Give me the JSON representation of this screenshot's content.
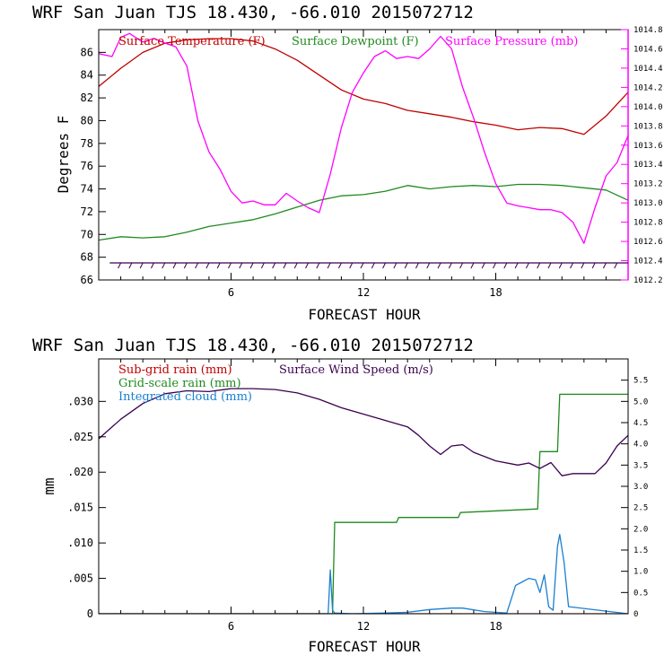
{
  "colors": {
    "temperature": "#c00000",
    "dewpoint": "#1f8a1f",
    "pressure": "#ff00ff",
    "wind": "#3a0050",
    "subgrid": "#c00000",
    "gridscale": "#1f8a1f",
    "cloud": "#1a7fd0",
    "axis": "#000000"
  },
  "chart_data": [
    {
      "type": "line",
      "title": "WRF  San Juan TJS  18.430, -66.010  2015072712",
      "xlabel": "FORECAST HOUR",
      "ylabel": "Degrees F",
      "xlim": [
        0,
        24
      ],
      "ylim": [
        66,
        88
      ],
      "x_ticks": [
        6,
        12,
        18
      ],
      "y_ticks": [
        66,
        68,
        70,
        72,
        74,
        76,
        78,
        80,
        82,
        84,
        86
      ],
      "y2lim": [
        1012.2,
        1014.8
      ],
      "y2_ticks": [
        "1012.2",
        "1012.4",
        "1012.6",
        "1012.8",
        "1013.0",
        "1013.2",
        "1013.4",
        "1013.6",
        "1013.8",
        "1014.0",
        "1014.2",
        "1014.4",
        "1014.6",
        "1014.8"
      ],
      "series": [
        {
          "name": "Surface Temperature (F)",
          "axis": "left",
          "x": [
            0,
            1,
            2,
            3,
            4,
            5,
            6,
            7,
            8,
            9,
            10,
            11,
            12,
            13,
            14,
            15,
            16,
            17,
            18,
            19,
            20,
            21,
            22,
            23,
            24
          ],
          "y": [
            83.0,
            84.6,
            86.0,
            86.8,
            87.1,
            87.2,
            87.2,
            87.0,
            86.3,
            85.3,
            84.0,
            82.7,
            81.9,
            81.5,
            80.9,
            80.6,
            80.3,
            79.9,
            79.6,
            79.2,
            79.4,
            79.3,
            78.8,
            80.4,
            82.5
          ]
        },
        {
          "name": "Surface Dewpoint (F)",
          "axis": "left",
          "x": [
            0,
            1,
            2,
            3,
            4,
            5,
            6,
            7,
            8,
            9,
            10,
            11,
            12,
            13,
            14,
            15,
            16,
            17,
            18,
            19,
            20,
            21,
            22,
            23,
            24
          ],
          "y": [
            69.5,
            69.8,
            69.7,
            69.8,
            70.2,
            70.7,
            71.0,
            71.3,
            71.8,
            72.4,
            73.0,
            73.4,
            73.5,
            73.8,
            74.3,
            74.0,
            74.2,
            74.3,
            74.2,
            74.4,
            74.4,
            74.3,
            74.1,
            73.9,
            73.0
          ]
        },
        {
          "name": "Surface Pressure (mb)",
          "axis": "right",
          "x": [
            0,
            0.6,
            1,
            1.4,
            2,
            2.5,
            3,
            3.5,
            4,
            4.5,
            5,
            5.5,
            6,
            6.5,
            7,
            7.5,
            8,
            8.5,
            9,
            9.5,
            10,
            10.5,
            11,
            11.5,
            12,
            12.5,
            13,
            13.5,
            14,
            14.5,
            15,
            15.5,
            16,
            16.5,
            17,
            17.5,
            18,
            18.5,
            19,
            19.5,
            20,
            20.5,
            21,
            21.5,
            22,
            22.5,
            23,
            23.5,
            24
          ],
          "y": [
            1014.55,
            1014.52,
            1014.72,
            1014.76,
            1014.67,
            1014.71,
            1014.66,
            1014.62,
            1014.42,
            1013.85,
            1013.53,
            1013.35,
            1013.12,
            1013.0,
            1013.02,
            1012.98,
            1012.98,
            1013.1,
            1013.02,
            1012.95,
            1012.9,
            1013.3,
            1013.78,
            1014.15,
            1014.35,
            1014.52,
            1014.58,
            1014.5,
            1014.52,
            1014.5,
            1014.6,
            1014.73,
            1014.6,
            1014.2,
            1013.88,
            1013.52,
            1013.2,
            1013.0,
            1012.97,
            1012.95,
            1012.93,
            1012.93,
            1012.9,
            1012.8,
            1012.58,
            1012.95,
            1013.28,
            1013.42,
            1013.7
          ]
        }
      ],
      "wind_barbs_y": 67.5
    },
    {
      "type": "line",
      "title": "WRF  San Juan TJS  18.430, -66.010  2015072712",
      "xlabel": "FORECAST HOUR",
      "ylabel": "mm",
      "xlim": [
        0,
        24
      ],
      "ylim": [
        0,
        0.036
      ],
      "x_ticks": [
        6,
        12,
        18
      ],
      "y_ticks": [
        0,
        0.005,
        0.01,
        0.015,
        0.02,
        0.025,
        0.03
      ],
      "y_tick_labels": [
        "0",
        ".005",
        ".010",
        ".015",
        ".020",
        ".025",
        ".030"
      ],
      "y2lim": [
        0,
        6.0
      ],
      "y2_ticks": [
        "0",
        "0.5",
        "1.0",
        "1.5",
        "2.0",
        "2.5",
        "3.0",
        "3.5",
        "4.0",
        "4.5",
        "5.0",
        "5.5"
      ],
      "series": [
        {
          "name": "Sub-grid rain (mm)",
          "axis": "left",
          "x": [
            0,
            24
          ],
          "y": [
            0,
            0
          ]
        },
        {
          "name": "Grid-scale rain (mm)",
          "axis": "left",
          "x": [
            0,
            10.6,
            10.7,
            13.5,
            13.6,
            16.3,
            16.4,
            19.9,
            20.0,
            20.8,
            20.9,
            24
          ],
          "y": [
            0,
            0,
            0.0129,
            0.0129,
            0.0136,
            0.0136,
            0.0143,
            0.0148,
            0.0229,
            0.0229,
            0.031,
            0.031
          ]
        },
        {
          "name": "Integrated cloud (mm)",
          "axis": "left",
          "x": [
            0,
            10.4,
            10.5,
            10.6,
            10.7,
            11.5,
            13.0,
            14.0,
            15.0,
            16.0,
            16.5,
            17.5,
            18.5,
            18.9,
            19.2,
            19.5,
            19.8,
            20.0,
            20.2,
            20.4,
            20.6,
            20.8,
            20.9,
            21.1,
            21.3,
            24
          ],
          "y": [
            0,
            0,
            0.0062,
            0.0005,
            0.0001,
            0,
            0.0001,
            0.0002,
            0.0006,
            0.0008,
            0.0008,
            0.0003,
            0.0001,
            0.004,
            0.0045,
            0.005,
            0.0048,
            0.003,
            0.0055,
            0.001,
            0.0005,
            0.0095,
            0.0112,
            0.0072,
            0.001,
            0
          ]
        },
        {
          "name": "Surface Wind Speed (m/s)",
          "axis": "right",
          "x": [
            0,
            1,
            2,
            3,
            4,
            5,
            6,
            7,
            8,
            9,
            10,
            11,
            12,
            13,
            14,
            14.5,
            15,
            15.5,
            16,
            16.5,
            17,
            18,
            19,
            19.5,
            20,
            20.5,
            21,
            21.5,
            22,
            22.5,
            23,
            23.5,
            24
          ],
          "y": [
            4.12,
            4.58,
            4.95,
            5.18,
            5.25,
            5.23,
            5.3,
            5.3,
            5.28,
            5.2,
            5.05,
            4.85,
            4.7,
            4.55,
            4.4,
            4.2,
            3.95,
            3.75,
            3.95,
            3.98,
            3.8,
            3.6,
            3.5,
            3.55,
            3.42,
            3.56,
            3.25,
            3.3,
            3.3,
            3.3,
            3.55,
            3.95,
            4.2
          ]
        }
      ]
    }
  ]
}
